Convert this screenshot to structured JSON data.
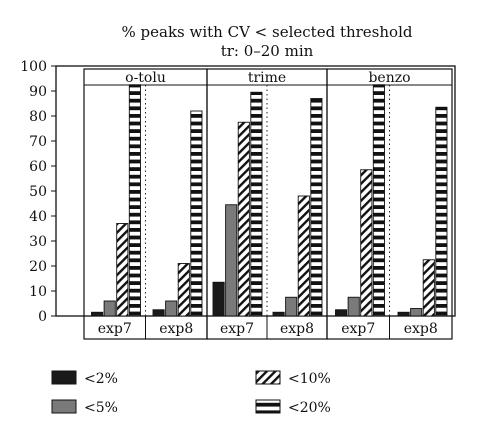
{
  "chart_data": {
    "type": "bar",
    "title": "% peaks with CV < selected threshold",
    "subtitle": "tr: 0–20 min",
    "xlabel": "",
    "ylabel": "",
    "ylim": [
      0,
      100
    ],
    "yticks": [
      0,
      10,
      20,
      30,
      40,
      50,
      60,
      70,
      80,
      90,
      100
    ],
    "groups": [
      "o-tolu",
      "trime",
      "benzo"
    ],
    "categories": [
      "exp7",
      "exp8",
      "exp7",
      "exp8",
      "exp7",
      "exp8"
    ],
    "series": [
      {
        "name": "<2%",
        "pattern": "solid-black",
        "values": [
          1.5,
          2.5,
          13.5,
          1.5,
          2.5,
          1.5
        ]
      },
      {
        "name": "<5%",
        "pattern": "solid-gray",
        "values": [
          6,
          6,
          44.5,
          7.5,
          7.5,
          3
        ]
      },
      {
        "name": "<10%",
        "pattern": "diagonal-hatch",
        "values": [
          37,
          21,
          77.5,
          48,
          58.5,
          22.5
        ]
      },
      {
        "name": "<20%",
        "pattern": "horizontal-stripes",
        "values": [
          92.5,
          82,
          89.5,
          87,
          92.5,
          83.5
        ]
      }
    ],
    "grid": "vertical-dotted",
    "legend_position": "bottom"
  }
}
